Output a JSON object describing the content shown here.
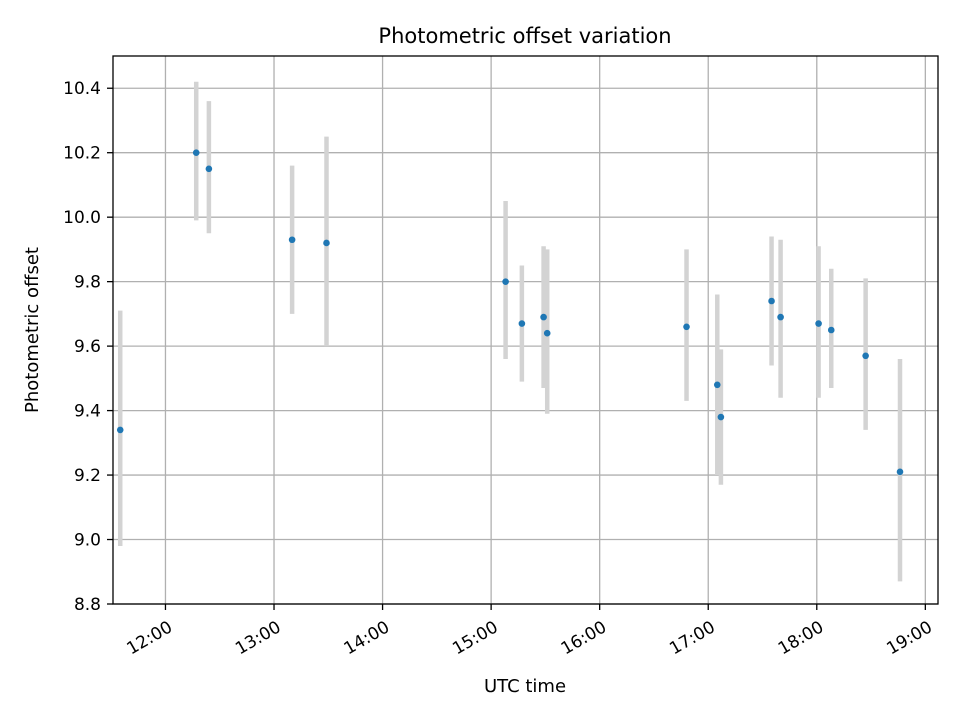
{
  "chart_data": {
    "type": "scatter",
    "title": "Photometric offset variation",
    "xlabel": "UTC time",
    "ylabel": "Photometric offset",
    "xlim": [
      "11:31",
      "19:07"
    ],
    "ylim": [
      8.8,
      10.5
    ],
    "grid": true,
    "x_ticks": [
      "12:00",
      "13:00",
      "14:00",
      "15:00",
      "16:00",
      "17:00",
      "18:00",
      "19:00"
    ],
    "y_ticks": [
      "8.8",
      "9.0",
      "9.2",
      "9.4",
      "9.6",
      "9.8",
      "10.0",
      "10.2",
      "10.4"
    ],
    "point_color": "#1f77b4",
    "errorbar_color": "#d3d3d3",
    "series": [
      {
        "points": [
          {
            "x": "11:35",
            "y": 9.34,
            "err_low": 8.98,
            "err_high": 9.71
          },
          {
            "x": "12:17",
            "y": 10.2,
            "err_low": 9.99,
            "err_high": 10.42
          },
          {
            "x": "12:24",
            "y": 10.15,
            "err_low": 9.95,
            "err_high": 10.36
          },
          {
            "x": "13:10",
            "y": 9.93,
            "err_low": 9.7,
            "err_high": 10.16
          },
          {
            "x": "13:29",
            "y": 9.92,
            "err_low": 9.6,
            "err_high": 10.25
          },
          {
            "x": "15:08",
            "y": 9.8,
            "err_low": 9.56,
            "err_high": 10.05
          },
          {
            "x": "15:17",
            "y": 9.67,
            "err_low": 9.49,
            "err_high": 9.85
          },
          {
            "x": "15:29",
            "y": 9.69,
            "err_low": 9.47,
            "err_high": 9.91
          },
          {
            "x": "15:31",
            "y": 9.64,
            "err_low": 9.39,
            "err_high": 9.9
          },
          {
            "x": "16:48",
            "y": 9.66,
            "err_low": 9.43,
            "err_high": 9.9
          },
          {
            "x": "17:05",
            "y": 9.48,
            "err_low": 9.2,
            "err_high": 9.76
          },
          {
            "x": "17:07",
            "y": 9.38,
            "err_low": 9.17,
            "err_high": 9.59
          },
          {
            "x": "17:35",
            "y": 9.74,
            "err_low": 9.54,
            "err_high": 9.94
          },
          {
            "x": "17:40",
            "y": 9.69,
            "err_low": 9.44,
            "err_high": 9.93
          },
          {
            "x": "18:01",
            "y": 9.67,
            "err_low": 9.44,
            "err_high": 9.91
          },
          {
            "x": "18:08",
            "y": 9.65,
            "err_low": 9.47,
            "err_high": 9.84
          },
          {
            "x": "18:27",
            "y": 9.57,
            "err_low": 9.34,
            "err_high": 9.81
          },
          {
            "x": "18:46",
            "y": 9.21,
            "err_low": 8.87,
            "err_high": 9.56
          }
        ]
      }
    ]
  }
}
